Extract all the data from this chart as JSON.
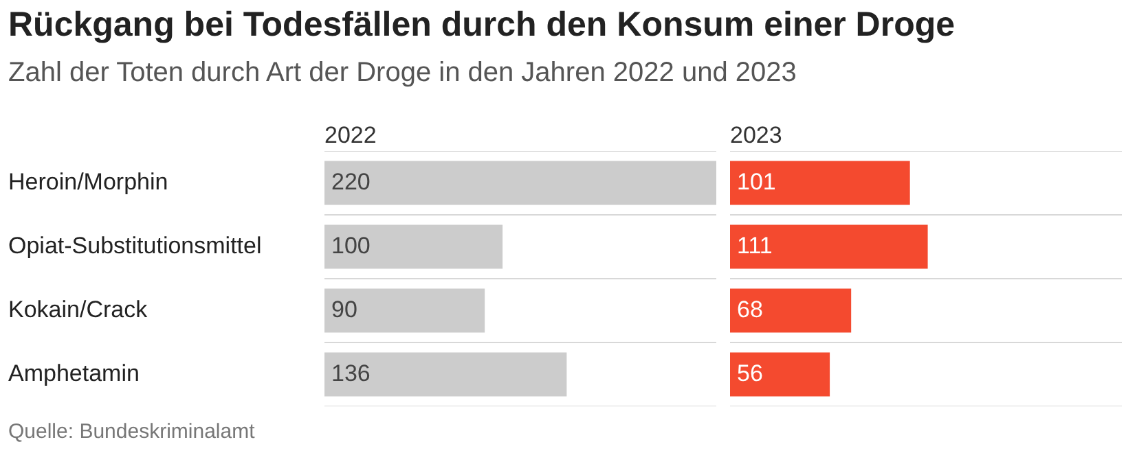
{
  "chart_data": [
    {
      "type": "bar",
      "orientation": "horizontal",
      "title": "Rückgang bei Todesfällen durch den Konsum einer Droge",
      "subtitle": "Zahl der Toten durch Art der Droge in den Jahren 2022 und 2023",
      "categories": [
        "Heroin/Morphin",
        "Opiat-Substitutionsmittel",
        "Kokain/Crack",
        "Amphetamin"
      ],
      "series": [
        {
          "name": "2022",
          "color": "#cccccc",
          "values": [
            220,
            100,
            90,
            136
          ]
        }
      ],
      "data_labels": true,
      "grid": "y",
      "annotations": [
        "Quelle: Bundeskriminalamt"
      ]
    },
    {
      "type": "bar",
      "orientation": "horizontal",
      "categories": [
        null,
        null,
        null,
        null
      ],
      "series": [
        {
          "name": "2023",
          "color": "#f44a2f",
          "values": [
            101,
            111,
            68,
            56
          ]
        }
      ],
      "data_labels": true,
      "grid": "y",
      "tick_labels": false
    }
  ]
}
